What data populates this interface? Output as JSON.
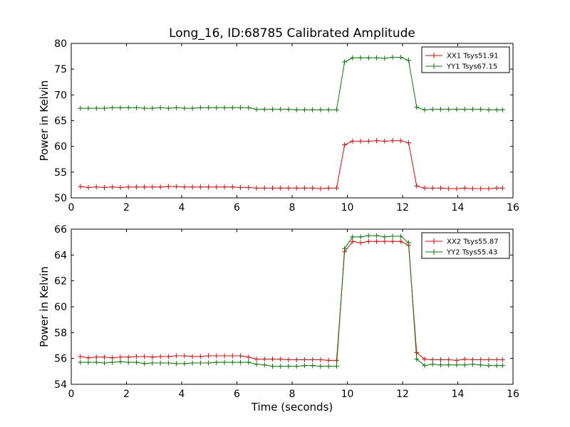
{
  "figure": {
    "title": "Long_16, ID:68785 Calibrated Amplitude",
    "xlabel": "Time (seconds)"
  },
  "colors": {
    "red": "#ff0000",
    "green": "#008000"
  },
  "chart_data": [
    {
      "type": "line",
      "title": "Long_16, ID:68785 Calibrated Amplitude",
      "xlabel": "",
      "ylabel": "Power in Kelvin",
      "xlim": [
        0,
        16
      ],
      "ylim": [
        50,
        80
      ],
      "xticks": [
        0,
        2,
        4,
        6,
        8,
        10,
        12,
        14,
        16
      ],
      "yticks": [
        50,
        55,
        60,
        65,
        70,
        75,
        80
      ],
      "grid": false,
      "legend": "top-right",
      "x": [
        0.33,
        0.62,
        0.91,
        1.2,
        1.49,
        1.78,
        2.07,
        2.36,
        2.65,
        2.94,
        3.23,
        3.52,
        3.81,
        4.1,
        4.39,
        4.68,
        4.97,
        5.26,
        5.55,
        5.84,
        6.13,
        6.42,
        6.71,
        7.0,
        7.29,
        7.58,
        7.87,
        8.16,
        8.45,
        8.74,
        9.03,
        9.32,
        9.61,
        9.9,
        10.19,
        10.48,
        10.77,
        11.06,
        11.35,
        11.64,
        11.93,
        12.22,
        12.51,
        12.8,
        13.09,
        13.38,
        13.67,
        13.96,
        14.25,
        14.54,
        14.83,
        15.12,
        15.41,
        15.62
      ],
      "series": [
        {
          "name": "XX1 Tsys51.91",
          "color": "#ff0000",
          "values": [
            52.2,
            52.0,
            52.1,
            52.0,
            52.1,
            52.0,
            52.1,
            52.1,
            52.1,
            52.1,
            52.1,
            52.2,
            52.2,
            52.1,
            52.1,
            52.1,
            52.1,
            52.1,
            52.1,
            52.1,
            52.0,
            52.0,
            51.9,
            51.9,
            51.9,
            51.9,
            51.9,
            51.9,
            51.9,
            51.9,
            51.8,
            51.9,
            51.9,
            60.3,
            61.0,
            61.0,
            61.0,
            61.1,
            61.0,
            61.1,
            61.1,
            60.7,
            52.3,
            51.9,
            51.9,
            51.9,
            51.8,
            51.8,
            51.9,
            51.8,
            51.8,
            51.8,
            51.9,
            51.9
          ]
        },
        {
          "name": "YY1 Tsys67.15",
          "color": "#008000",
          "values": [
            67.4,
            67.4,
            67.4,
            67.4,
            67.5,
            67.5,
            67.5,
            67.5,
            67.4,
            67.4,
            67.5,
            67.4,
            67.5,
            67.4,
            67.4,
            67.5,
            67.5,
            67.5,
            67.5,
            67.5,
            67.5,
            67.5,
            67.2,
            67.2,
            67.2,
            67.2,
            67.2,
            67.1,
            67.1,
            67.1,
            67.1,
            67.1,
            67.1,
            76.4,
            77.2,
            77.2,
            77.2,
            77.2,
            77.1,
            77.3,
            77.3,
            76.7,
            67.6,
            67.1,
            67.2,
            67.2,
            67.2,
            67.2,
            67.2,
            67.2,
            67.2,
            67.1,
            67.1,
            67.1
          ]
        }
      ]
    },
    {
      "type": "line",
      "title": "",
      "xlabel": "Time (seconds)",
      "ylabel": "Power in Kelvin",
      "xlim": [
        0,
        16
      ],
      "ylim": [
        54,
        66
      ],
      "xticks": [
        0,
        2,
        4,
        6,
        8,
        10,
        12,
        14,
        16
      ],
      "yticks": [
        54,
        56,
        58,
        60,
        62,
        64,
        66
      ],
      "grid": false,
      "legend": "top-right",
      "x": [
        0.33,
        0.62,
        0.91,
        1.2,
        1.49,
        1.78,
        2.07,
        2.36,
        2.65,
        2.94,
        3.23,
        3.52,
        3.81,
        4.1,
        4.39,
        4.68,
        4.97,
        5.26,
        5.55,
        5.84,
        6.13,
        6.42,
        6.71,
        7.0,
        7.29,
        7.58,
        7.87,
        8.16,
        8.45,
        8.74,
        9.03,
        9.32,
        9.61,
        9.9,
        10.19,
        10.48,
        10.77,
        11.06,
        11.35,
        11.64,
        11.93,
        12.22,
        12.51,
        12.8,
        13.09,
        13.38,
        13.67,
        13.96,
        14.25,
        14.54,
        14.83,
        15.12,
        15.41,
        15.62
      ],
      "series": [
        {
          "name": "XX2 Tsys55.87",
          "color": "#ff0000",
          "values": [
            56.15,
            56.05,
            56.1,
            56.1,
            56.05,
            56.1,
            56.1,
            56.15,
            56.15,
            56.1,
            56.15,
            56.15,
            56.2,
            56.2,
            56.15,
            56.15,
            56.2,
            56.2,
            56.2,
            56.2,
            56.2,
            56.1,
            55.95,
            55.95,
            55.95,
            55.95,
            55.9,
            55.9,
            55.9,
            55.9,
            55.9,
            55.85,
            55.85,
            64.25,
            65.05,
            64.95,
            65.05,
            65.05,
            65.05,
            65.05,
            65.05,
            64.75,
            56.45,
            55.95,
            55.9,
            55.9,
            55.9,
            55.85,
            55.95,
            55.9,
            55.9,
            55.9,
            55.9,
            55.9
          ]
        },
        {
          "name": "YY2 Tsys55.43",
          "color": "#008000",
          "values": [
            55.7,
            55.7,
            55.7,
            55.65,
            55.7,
            55.75,
            55.7,
            55.7,
            55.6,
            55.65,
            55.65,
            55.65,
            55.6,
            55.6,
            55.65,
            55.65,
            55.65,
            55.7,
            55.7,
            55.7,
            55.7,
            55.7,
            55.55,
            55.5,
            55.4,
            55.4,
            55.4,
            55.4,
            55.45,
            55.45,
            55.4,
            55.4,
            55.4,
            64.5,
            65.4,
            65.4,
            65.5,
            65.5,
            65.4,
            65.45,
            65.45,
            64.95,
            55.95,
            55.45,
            55.55,
            55.5,
            55.5,
            55.5,
            55.5,
            55.55,
            55.5,
            55.45,
            55.45,
            55.45
          ]
        }
      ]
    }
  ]
}
